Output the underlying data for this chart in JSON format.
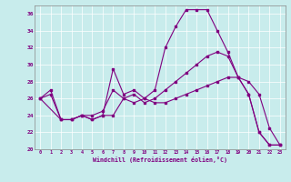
{
  "xlabel": "Windchill (Refroidissement éolien,°C)",
  "bg_color": "#c8ecec",
  "line_color": "#800080",
  "grid_color": "#ffffff",
  "ylim": [
    20,
    37
  ],
  "xlim": [
    -0.5,
    23.5
  ],
  "yticks": [
    20,
    22,
    24,
    26,
    28,
    30,
    32,
    34,
    36
  ],
  "xticks": [
    0,
    1,
    2,
    3,
    4,
    5,
    6,
    7,
    8,
    9,
    10,
    11,
    12,
    13,
    14,
    15,
    16,
    17,
    18,
    19,
    20,
    21,
    22,
    23
  ],
  "line1_x": [
    0,
    1,
    2,
    3,
    4,
    5,
    6,
    7,
    8,
    9,
    10,
    11,
    12,
    13,
    14,
    15,
    16,
    17,
    18,
    19,
    20,
    21,
    22,
    23
  ],
  "line1_y": [
    26,
    27,
    23.5,
    23.5,
    24,
    23.5,
    24,
    29.5,
    26.5,
    27,
    26,
    27,
    32,
    34.5,
    36.5,
    36.5,
    36.5,
    34,
    31.5,
    28.5,
    26.5,
    22,
    20.5,
    20.5
  ],
  "line2_x": [
    0,
    1,
    2,
    3,
    4,
    5,
    6,
    7,
    8,
    9,
    10,
    11,
    12,
    13,
    14,
    15,
    16,
    17,
    18,
    19,
    20,
    21,
    22,
    23
  ],
  "line2_y": [
    26,
    26.5,
    23.5,
    23.5,
    24,
    24,
    24.5,
    27,
    26,
    26.5,
    25.5,
    26,
    27,
    28,
    29,
    30,
    31,
    31.5,
    31,
    28.5,
    26.5,
    22,
    20.5,
    20.5
  ],
  "line3_x": [
    0,
    2,
    3,
    4,
    5,
    6,
    7,
    8,
    9,
    10,
    11,
    12,
    13,
    14,
    15,
    16,
    17,
    18,
    19,
    20,
    21,
    22,
    23
  ],
  "line3_y": [
    26,
    23.5,
    23.5,
    24,
    23.5,
    24,
    24,
    26,
    25.5,
    26,
    25.5,
    25.5,
    26,
    26.5,
    27,
    27.5,
    28,
    28.5,
    28.5,
    28,
    26.5,
    22.5,
    20.5
  ]
}
